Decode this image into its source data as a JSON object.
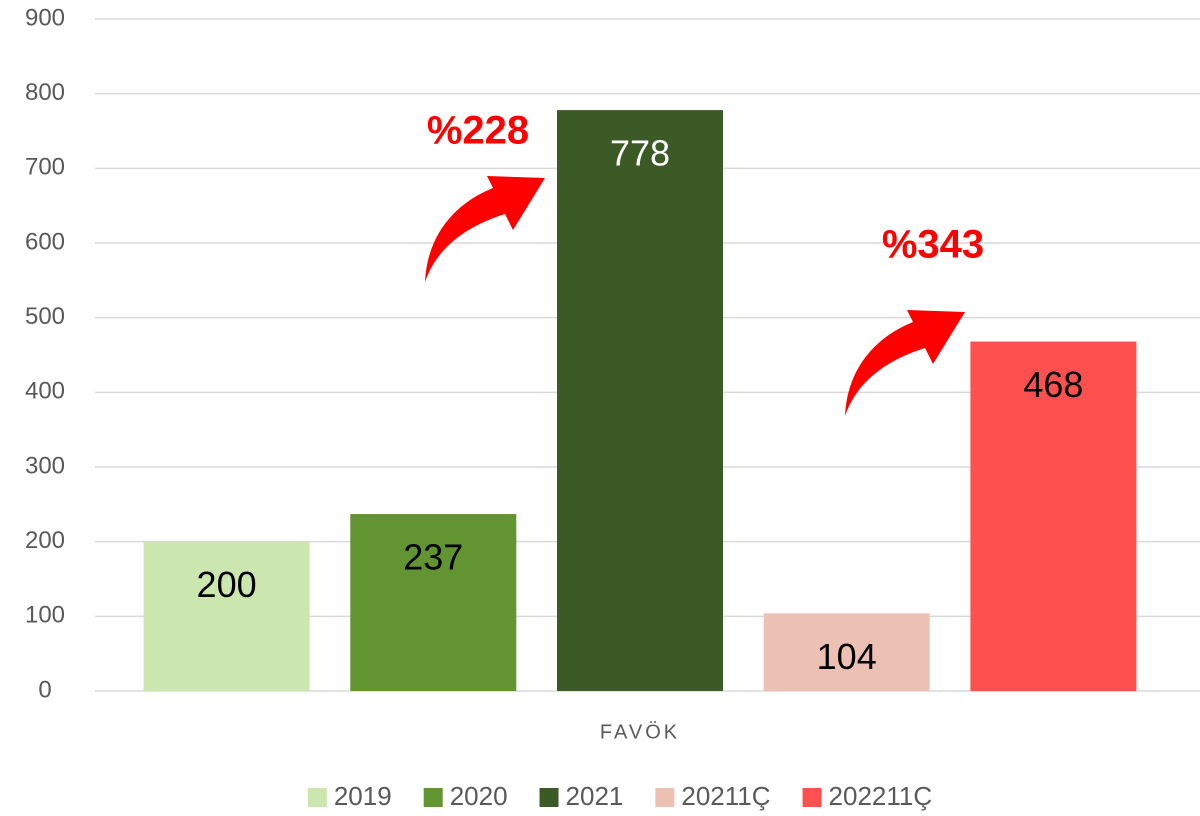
{
  "chart_data": {
    "type": "bar",
    "categories": [
      "FAVÖK"
    ],
    "series": [
      {
        "name": "2019",
        "color": "#cce6b0",
        "values": [
          200
        ]
      },
      {
        "name": "2020",
        "color": "#629431",
        "values": [
          237
        ]
      },
      {
        "name": "2021",
        "color": "#3b5a26",
        "values": [
          778
        ]
      },
      {
        "name": "20211Ç",
        "color": "#ecc0b3",
        "values": [
          104
        ]
      },
      {
        "name": "202211Ç",
        "color": "#ff5050",
        "values": [
          468
        ]
      }
    ],
    "ylim": [
      0,
      900
    ],
    "yticks": [
      0,
      100,
      200,
      300,
      400,
      500,
      600,
      700,
      800,
      900
    ],
    "grid": true,
    "legend": "bottom",
    "annotations": [
      {
        "text": "%228"
      },
      {
        "text": "%343"
      }
    ]
  }
}
